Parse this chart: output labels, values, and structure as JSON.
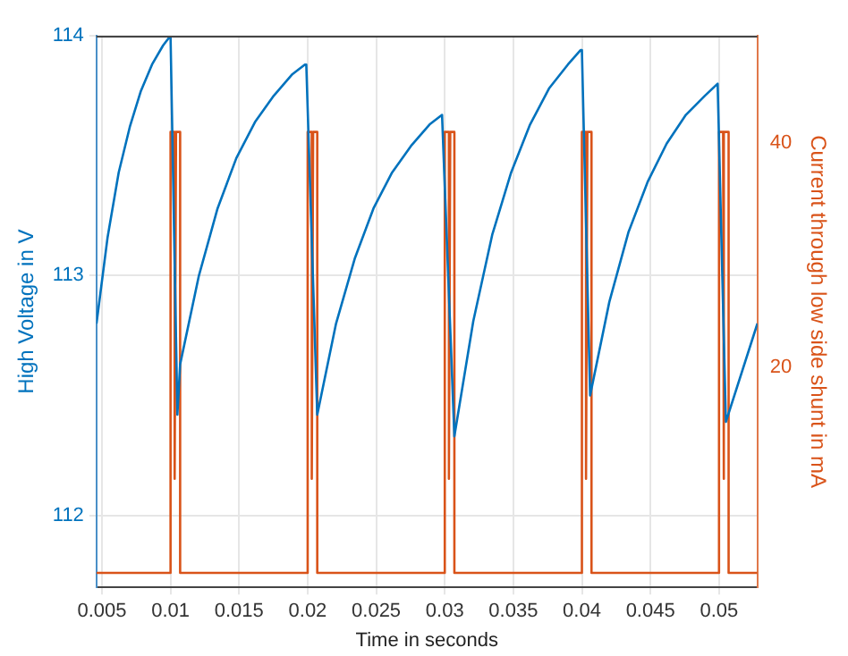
{
  "chart_data": {
    "type": "line",
    "xlabel": "Time in seconds",
    "ylabel": "High Voltage in V",
    "y2label": "Current through low side shunt in mA",
    "xlim": [
      0.0046,
      0.0528
    ],
    "xticks": [
      0.005,
      0.01,
      0.015,
      0.02,
      0.025,
      0.03,
      0.035,
      0.04,
      0.045,
      0.05
    ],
    "ylim": [
      111.7,
      114.0
    ],
    "yticks": [
      112,
      113,
      114
    ],
    "y2lim": [
      0.3,
      49.6
    ],
    "y2ticks": [
      20,
      40
    ],
    "grid": true,
    "legend": false,
    "marker": "none",
    "line_style": "solid",
    "series": [
      {
        "color": "#0072bd",
        "x": [
          0.0046,
          0.00541,
          0.00622,
          0.00703,
          0.00784,
          0.00865,
          0.00946,
          0.01,
          0.0105,
          0.0107,
          0.01207,
          0.01343,
          0.0148,
          0.01616,
          0.01753,
          0.01889,
          0.0198,
          0.0199,
          0.0207,
          0.02207,
          0.02343,
          0.0248,
          0.02616,
          0.02753,
          0.02889,
          0.0298,
          0.0299,
          0.0307,
          0.03208,
          0.03346,
          0.03484,
          0.03622,
          0.0376,
          0.03898,
          0.0399,
          0.04,
          0.0406,
          0.042,
          0.04339,
          0.04479,
          0.04618,
          0.04758,
          0.04897,
          0.0499,
          0.05,
          0.0505,
          0.0528
        ],
        "values": [
          112.8,
          113.16,
          113.43,
          113.62,
          113.77,
          113.88,
          113.96,
          114.0,
          112.42,
          112.63,
          113.0,
          113.28,
          113.49,
          113.64,
          113.75,
          113.84,
          113.88,
          113.88,
          112.42,
          112.8,
          113.07,
          113.28,
          113.43,
          113.54,
          113.63,
          113.67,
          113.67,
          112.33,
          112.81,
          113.17,
          113.43,
          113.63,
          113.78,
          113.88,
          113.94,
          113.94,
          112.5,
          112.89,
          113.18,
          113.39,
          113.55,
          113.67,
          113.75,
          113.8,
          113.8,
          112.39,
          112.8
        ]
      },
      {
        "color": "#d95319",
        "axis": "y2",
        "x": [
          0.0046,
          0.01,
          0.01,
          0.0103,
          0.0103,
          0.0104,
          0.0107,
          0.0107,
          0.02,
          0.02,
          0.0203,
          0.0203,
          0.0204,
          0.0207,
          0.0207,
          0.03,
          0.03,
          0.0303,
          0.0303,
          0.0304,
          0.0307,
          0.0307,
          0.04,
          0.04,
          0.0403,
          0.0403,
          0.0404,
          0.0407,
          0.0407,
          0.05,
          0.05,
          0.0503,
          0.0503,
          0.0504,
          0.0507,
          0.0507,
          0.0528
        ],
        "values": [
          1.6,
          1.6,
          41,
          41,
          10,
          41,
          41,
          1.6,
          1.6,
          41,
          41,
          10,
          41,
          41,
          1.6,
          1.6,
          41,
          41,
          10,
          41,
          41,
          1.6,
          1.6,
          41,
          41,
          10,
          41,
          41,
          1.6,
          1.6,
          41,
          41,
          10,
          41,
          41,
          1.6,
          1.6
        ]
      }
    ]
  }
}
